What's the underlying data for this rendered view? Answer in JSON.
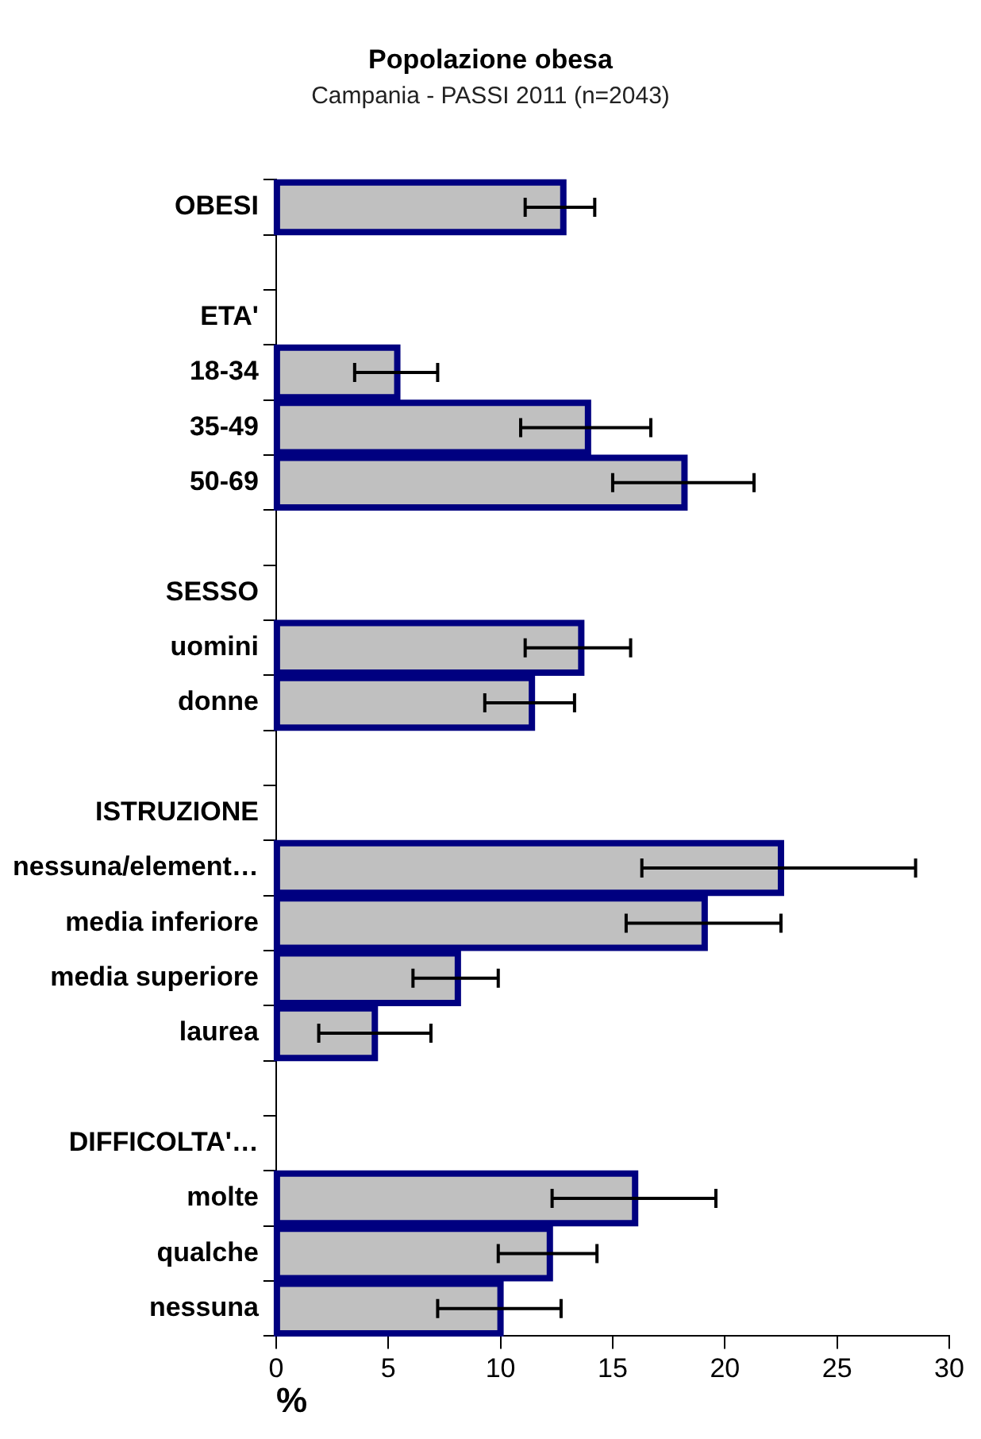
{
  "chart_data": {
    "type": "bar",
    "orientation": "horizontal",
    "title": "Popolazione obesa",
    "subtitle": "Campania - PASSI 2011 (n=2043)",
    "xlabel": "%",
    "categories": [
      "OBESI",
      null,
      "ETA'",
      "18-34",
      "35-49",
      "50-69",
      null,
      "SESSO",
      "uomini",
      "donne",
      null,
      "ISTRUZIONE",
      "nessuna/element…",
      "media inferiore",
      "media superiore",
      "laurea",
      null,
      "DIFFICOLTA'…",
      "molte",
      "qualche",
      "nessuna"
    ],
    "values": [
      12.8,
      null,
      null,
      5.4,
      13.9,
      18.2,
      null,
      null,
      13.6,
      11.4,
      null,
      null,
      22.5,
      19.1,
      8.1,
      4.4,
      null,
      null,
      16.0,
      12.2,
      10.0
    ],
    "errors": [
      [
        11.1,
        14.2
      ],
      null,
      null,
      [
        3.5,
        7.2
      ],
      [
        10.9,
        16.7
      ],
      [
        15.0,
        21.3
      ],
      null,
      null,
      [
        11.1,
        15.8
      ],
      [
        9.3,
        13.3
      ],
      null,
      null,
      [
        16.3,
        28.5
      ],
      [
        15.6,
        22.5
      ],
      [
        6.1,
        9.9
      ],
      [
        1.9,
        6.9
      ],
      null,
      null,
      [
        12.3,
        19.6
      ],
      [
        9.9,
        14.3
      ],
      [
        7.2,
        12.7
      ]
    ],
    "color": "#c0c0c0",
    "xlim": [
      0,
      30
    ],
    "xticks": [
      0,
      5,
      10,
      15,
      20,
      25,
      30
    ],
    "grid": false,
    "legend": false
  }
}
